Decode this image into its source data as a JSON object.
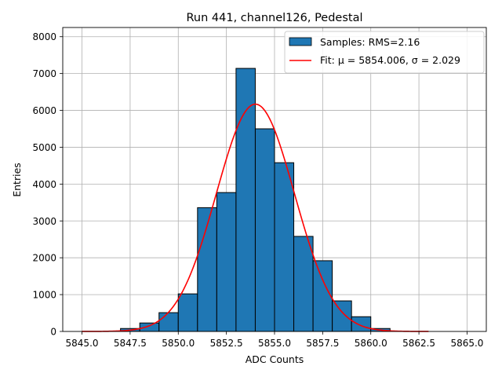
{
  "chart_data": {
    "type": "bar",
    "title": "Run 441, channel126, Pedestal",
    "xlabel": "ADC Counts",
    "ylabel": "Entries",
    "xlim": [
      5844.0,
      5866.0
    ],
    "ylim": [
      0,
      8250
    ],
    "xticks": [
      5845.0,
      5847.5,
      5850.0,
      5852.5,
      5855.0,
      5857.5,
      5860.0,
      5862.5,
      5865.0
    ],
    "xtick_labels": [
      "5845.0",
      "5847.5",
      "5850.0",
      "5852.5",
      "5855.0",
      "5857.5",
      "5860.0",
      "5862.5",
      "5865.0"
    ],
    "yticks": [
      0,
      1000,
      2000,
      3000,
      4000,
      5000,
      6000,
      7000,
      8000
    ],
    "ytick_labels": [
      "0",
      "1000",
      "2000",
      "3000",
      "4000",
      "5000",
      "6000",
      "7000",
      "8000"
    ],
    "grid": true,
    "legend_position": "top-right",
    "bin_edges": [
      5847.0,
      5848.0,
      5849.0,
      5850.0,
      5851.0,
      5852.0,
      5853.0,
      5854.0,
      5855.0,
      5856.0,
      5857.0,
      5858.0,
      5859.0,
      5860.0,
      5861.0
    ],
    "series": [
      {
        "name": "Samples: RMS=2.16",
        "kind": "histogram",
        "color": "#1f77b4",
        "edge_color": "#000000",
        "values": [
          80,
          230,
          510,
          1020,
          3360,
          3770,
          7140,
          5500,
          4580,
          2580,
          1920,
          830,
          400,
          80
        ]
      },
      {
        "name": "Fit: μ = 5854.006, σ = 2.029",
        "kind": "gaussian-fit",
        "color": "#ff0000",
        "mu": 5854.006,
        "sigma": 2.029,
        "amplitude": 6170,
        "x_range": [
          5845.0,
          5863.0
        ]
      }
    ]
  }
}
